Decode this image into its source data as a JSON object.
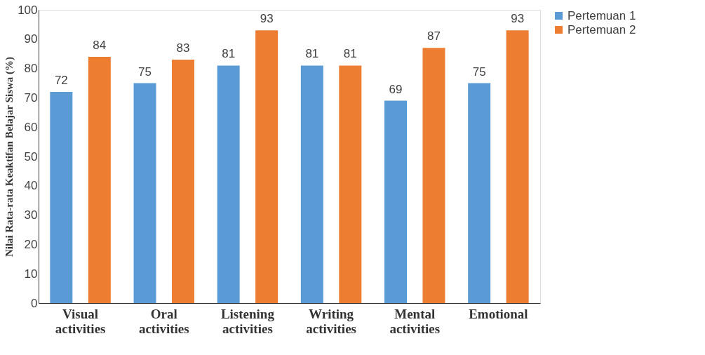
{
  "chart_data": {
    "type": "bar",
    "ylabel": "Nilai Rata-rata Keaktifan Belajar Siswa (%)",
    "categories": [
      "Visual activities",
      "Oral activities",
      "Listening activities",
      "Writing activities",
      "Mental activities",
      "Emotional"
    ],
    "series": [
      {
        "name": "Pertemuan 1",
        "color": "#5b9bd5",
        "values": [
          72,
          75,
          81,
          81,
          69,
          75
        ]
      },
      {
        "name": "Pertemuan 2",
        "color": "#ed7d31",
        "values": [
          84,
          83,
          93,
          81,
          87,
          93
        ]
      }
    ],
    "ylim": [
      0,
      100
    ],
    "yticks": [
      0,
      10,
      20,
      30,
      40,
      50,
      60,
      70,
      80,
      90,
      100
    ],
    "grid": false,
    "legend": "right",
    "data_labels": true
  }
}
